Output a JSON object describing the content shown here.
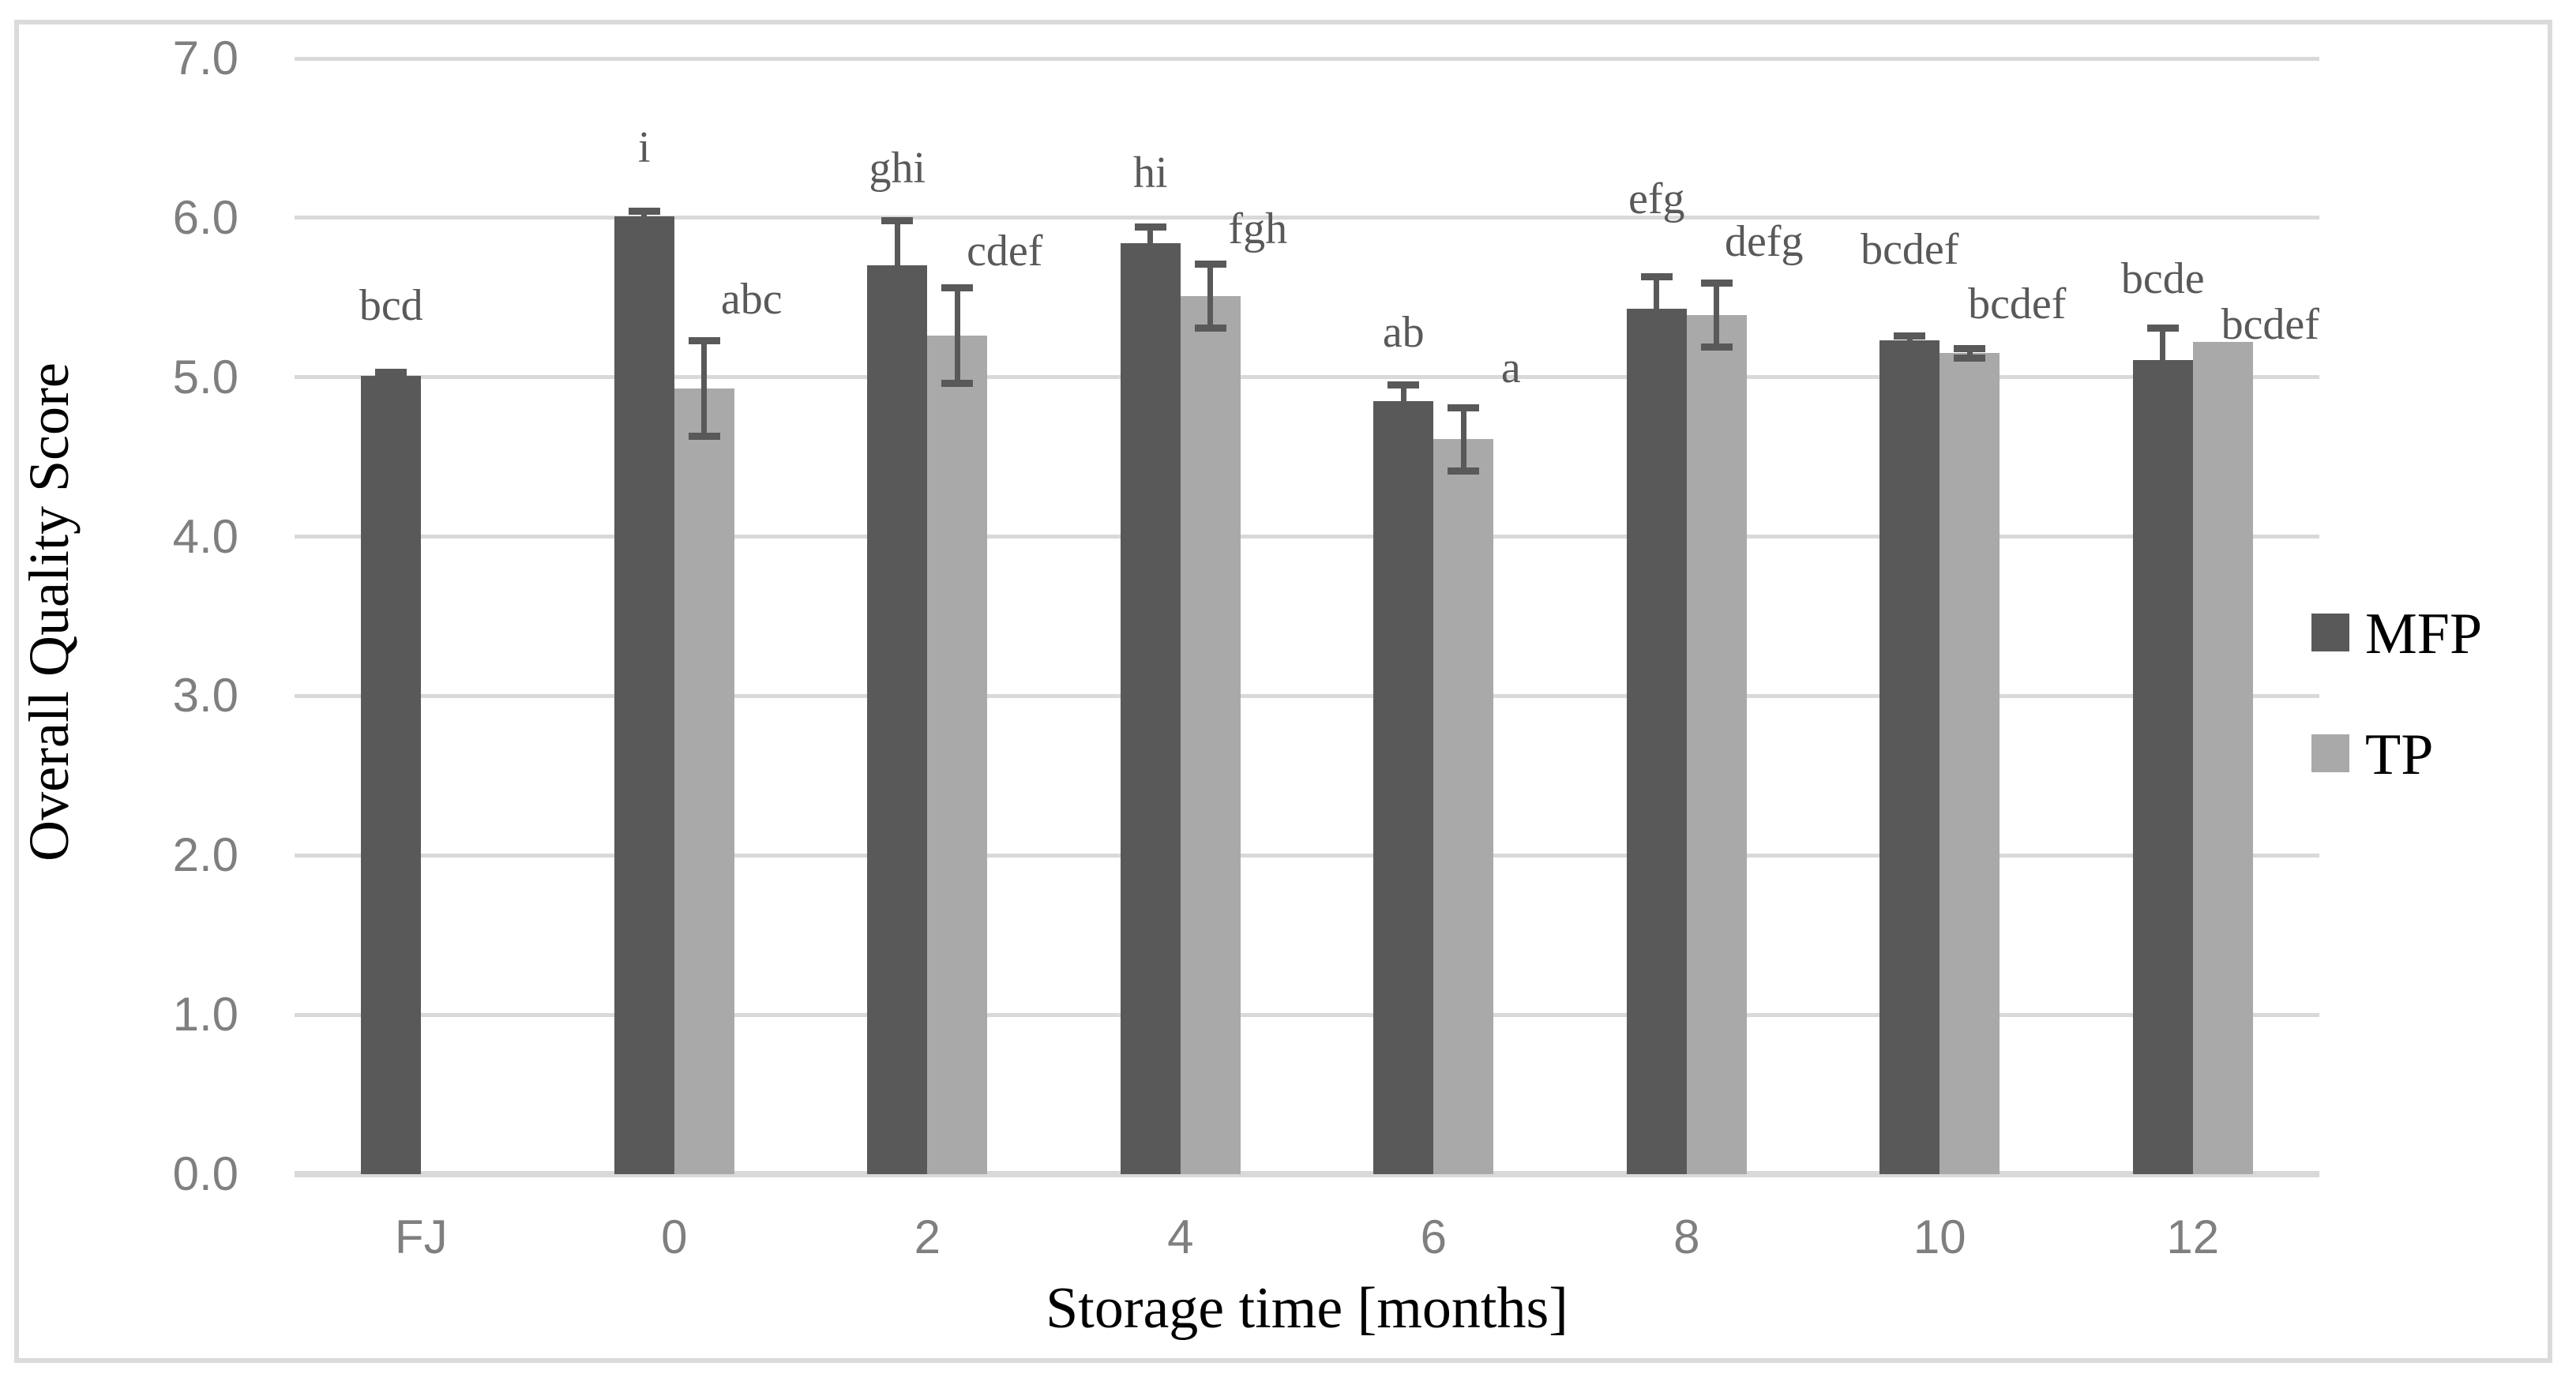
{
  "figure": {
    "background_color": "#ffffff",
    "border_color": "#dbdbdb"
  },
  "chart_data": {
    "type": "bar",
    "title": "",
    "xlabel": "Storage time [months]",
    "ylabel": "Overall Quality Score",
    "categories": [
      "FJ",
      "0",
      "2",
      "4",
      "6",
      "8",
      "10",
      "12"
    ],
    "y_ticks": [
      "0.0",
      "1.0",
      "2.0",
      "3.0",
      "4.0",
      "5.0",
      "6.0",
      "7.0"
    ],
    "ylim": [
      0,
      7
    ],
    "grid": true,
    "legend_position": "right",
    "gridline_color": "#d9d9d9",
    "tick_label_color": "#7f7f7f",
    "annotation_color": "#595959",
    "error_bar_color": "#595959",
    "axis_title_color": "#000000",
    "series": [
      {
        "name": "MFP",
        "color": "#595959",
        "values": [
          5.01,
          6.01,
          5.7,
          5.84,
          4.85,
          5.43,
          5.23,
          5.11
        ],
        "errors": [
          0.02,
          0.03,
          0.28,
          0.1,
          0.1,
          0.2,
          0.03,
          0.2
        ],
        "letters": [
          "bcd",
          "i",
          "ghi",
          "hi",
          "ab",
          "efg",
          "bcdef",
          "bcde"
        ],
        "letter_heights": [
          5.45,
          6.44,
          6.31,
          6.28,
          5.28,
          6.12,
          5.8,
          5.62
        ]
      },
      {
        "name": "TP",
        "color": "#a9a9a9",
        "values": [
          null,
          4.93,
          5.26,
          5.51,
          4.61,
          5.39,
          5.15,
          5.22
        ],
        "errors": [
          null,
          0.3,
          0.3,
          0.2,
          0.2,
          0.2,
          0.03,
          0
        ],
        "letters": [
          null,
          "abc",
          "cdef",
          "fgh",
          "a",
          "defg",
          "bcdef",
          "bcdef"
        ],
        "letter_heights": [
          null,
          5.49,
          5.79,
          5.93,
          5.06,
          5.85,
          5.46,
          5.33
        ]
      }
    ]
  },
  "legend": {
    "items": [
      {
        "label": "MFP",
        "color": "#595959"
      },
      {
        "label": "TP",
        "color": "#a9a9a9"
      }
    ]
  }
}
